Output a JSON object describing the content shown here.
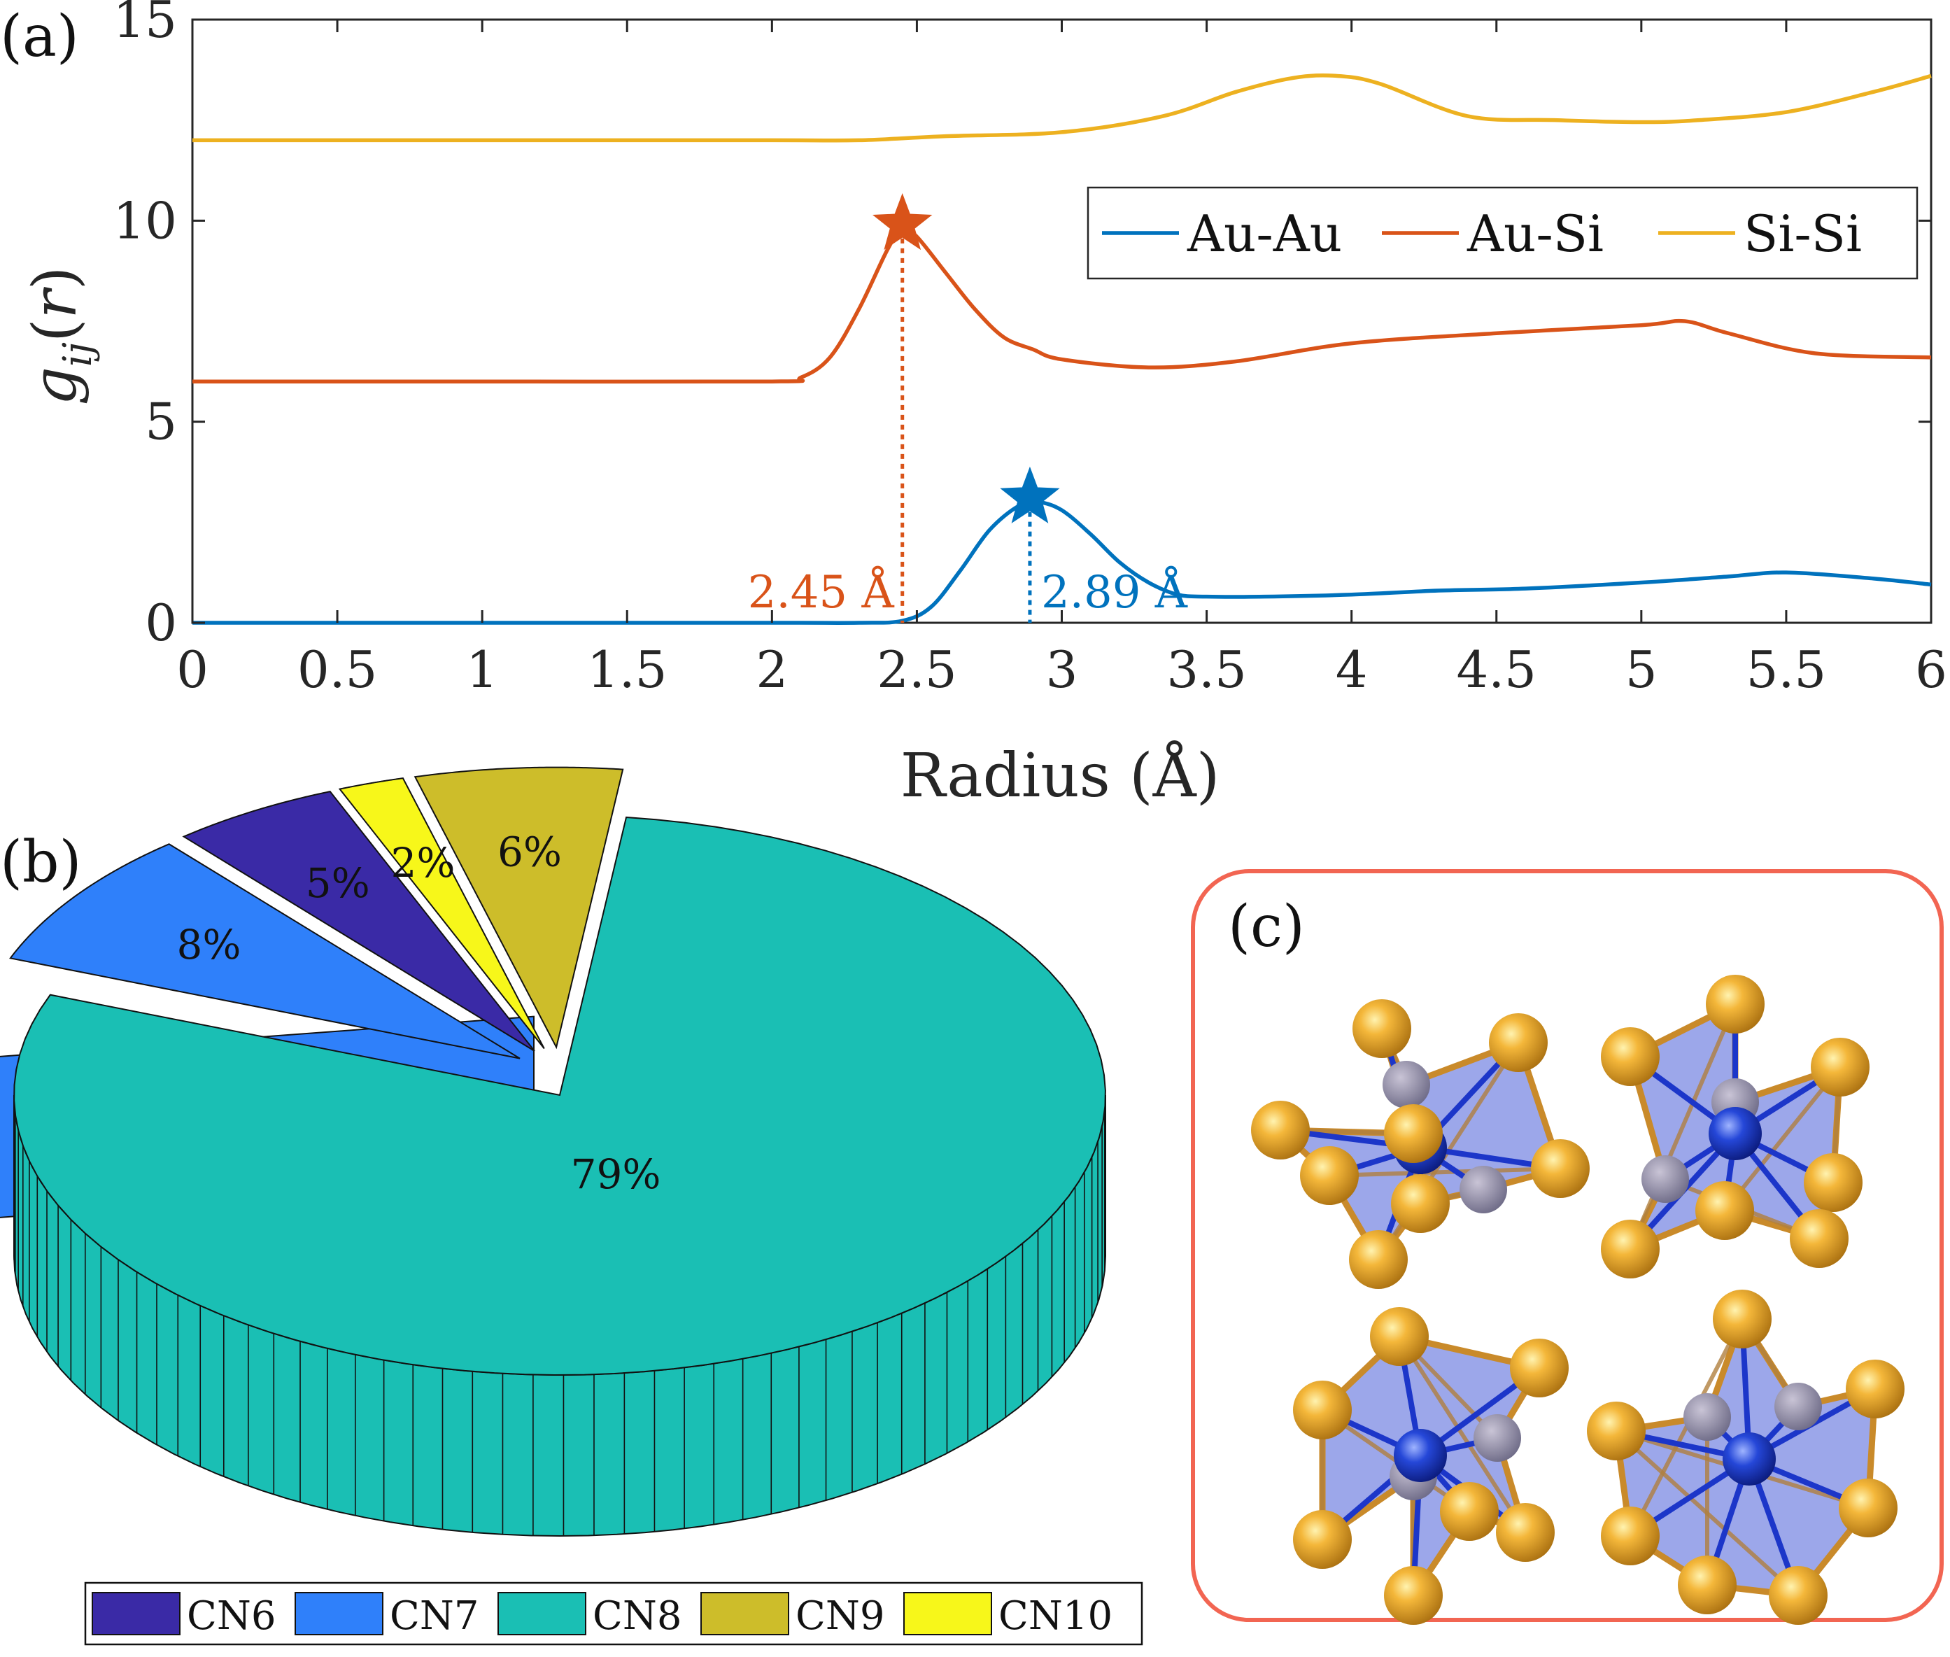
{
  "panels": {
    "a": "(a)",
    "b": "(b)",
    "c": "(c)"
  },
  "chart_data": [
    {
      "type": "line",
      "panel": "(a)",
      "xlabel": "Radius (Å)",
      "ylabel": "g_ij(r)",
      "xlim": [
        0,
        6
      ],
      "ylim": [
        0,
        15
      ],
      "xticks": [
        0,
        0.5,
        1,
        1.5,
        2,
        2.5,
        3,
        3.5,
        4,
        4.5,
        5,
        5.5,
        6
      ],
      "xtick_labels": [
        "0",
        "0.5",
        "1",
        "1.5",
        "2",
        "2.5",
        "3",
        "3.5",
        "4",
        "4.5",
        "5",
        "5.5",
        "6"
      ],
      "yticks": [
        0,
        5,
        10,
        15
      ],
      "ytick_labels": [
        "0",
        "5",
        "10",
        "15"
      ],
      "legend_position": "top-right",
      "series": [
        {
          "name": "Au-Au",
          "color": "#0072BD",
          "x": [
            0,
            1.0,
            2.0,
            2.3,
            2.45,
            2.55,
            2.65,
            2.75,
            2.85,
            2.92,
            3.0,
            3.1,
            3.2,
            3.3,
            3.4,
            3.5,
            3.7,
            4.0,
            4.3,
            4.6,
            5.0,
            5.3,
            5.5,
            5.8,
            6.0
          ],
          "y": [
            0,
            0,
            0,
            0,
            0.05,
            0.4,
            1.3,
            2.3,
            2.9,
            3.0,
            2.8,
            2.2,
            1.5,
            1.0,
            0.7,
            0.65,
            0.65,
            0.7,
            0.8,
            0.85,
            1.0,
            1.15,
            1.25,
            1.1,
            0.95
          ]
        },
        {
          "name": "Au-Si",
          "color": "#D95319",
          "x": [
            0,
            1.0,
            2.0,
            2.1,
            2.2,
            2.3,
            2.4,
            2.45,
            2.5,
            2.6,
            2.7,
            2.8,
            2.9,
            3.0,
            3.3,
            3.6,
            4.0,
            4.5,
            5.0,
            5.15,
            5.3,
            5.6,
            6.0
          ],
          "y": [
            6.0,
            6.0,
            6.0,
            6.1,
            6.6,
            7.8,
            9.3,
            9.8,
            9.6,
            8.7,
            7.8,
            7.1,
            6.8,
            6.55,
            6.35,
            6.5,
            6.95,
            7.2,
            7.4,
            7.5,
            7.2,
            6.7,
            6.6
          ]
        },
        {
          "name": "Si-Si",
          "color": "#EDB120",
          "x": [
            0,
            1.0,
            2.0,
            2.3,
            2.6,
            3.0,
            3.35,
            3.6,
            3.8,
            3.95,
            4.1,
            4.4,
            4.7,
            5.0,
            5.2,
            5.5,
            5.8,
            6.0
          ],
          "y": [
            12.0,
            12.0,
            12.0,
            12.0,
            12.1,
            12.2,
            12.6,
            13.2,
            13.55,
            13.6,
            13.4,
            12.6,
            12.5,
            12.45,
            12.5,
            12.7,
            13.2,
            13.6
          ]
        }
      ],
      "annotations": [
        {
          "text": "2.45 Å",
          "x": 2.45,
          "y": 9.8,
          "color": "#D95319"
        },
        {
          "text": "2.89 Å",
          "x": 2.89,
          "y": 3.0,
          "color": "#0072BD"
        }
      ]
    },
    {
      "type": "pie",
      "panel": "(b)",
      "categories": [
        "CN6",
        "CN7",
        "CN8",
        "CN9",
        "CN10"
      ],
      "values": [
        5,
        8,
        79,
        6,
        2
      ],
      "labels": [
        "5%",
        "8%",
        "79%",
        "6%",
        "2%"
      ],
      "colors": [
        "#3A2AA6",
        "#2F80FA",
        "#1ABFB4",
        "#CDBD2A",
        "#F7F71A"
      ],
      "legend_position": "bottom"
    }
  ]
}
